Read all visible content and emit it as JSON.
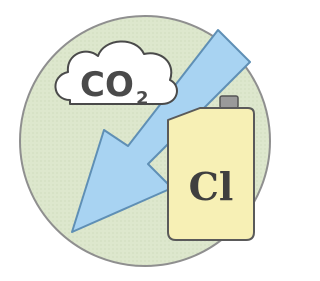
{
  "co2": {
    "main": "CO",
    "subscript": "2"
  },
  "canister": {
    "label": "Cl"
  }
}
